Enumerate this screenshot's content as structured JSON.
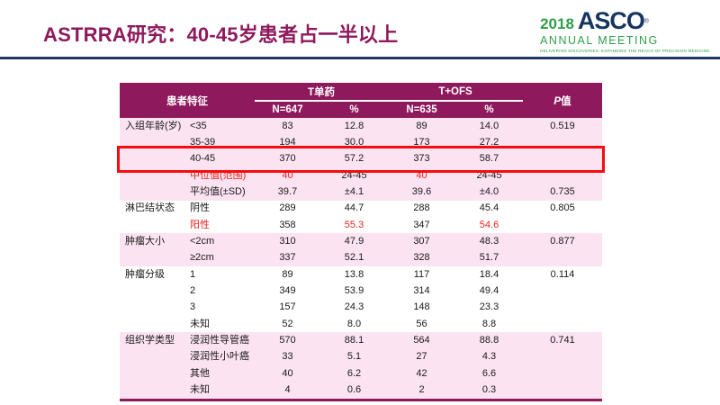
{
  "slide_title": "ASTRRA研究：40-45岁患者占一半以上",
  "logo": {
    "year": "2018",
    "org": "ASCO",
    "reg": "®",
    "meeting": "ANNUAL MEETING",
    "tagline": "DELIVERING DISCOVERIES: EXPANDING THE REACH OF PRECISION MEDICINE."
  },
  "table": {
    "feature_header": "患者特征",
    "group_headers": [
      "T单药",
      "T+OFS"
    ],
    "sub_headers": [
      "N=647",
      "%",
      "N=635",
      "%"
    ],
    "p_header_italic": "P",
    "p_header_rest": "值",
    "rows": [
      {
        "group": "入组年龄(岁)",
        "label": "<35",
        "values": [
          "83",
          "12.8",
          "89",
          "14.0"
        ],
        "p": "0.519",
        "band": "pink"
      },
      {
        "group": "",
        "label": "35-39",
        "values": [
          "194",
          "30.0",
          "173",
          "27.2"
        ],
        "p": "",
        "band": "pink"
      },
      {
        "group": "",
        "label": "40-45",
        "values": [
          "370",
          "57.2",
          "373",
          "58.7"
        ],
        "p": "",
        "band": "pink",
        "highlight": true
      },
      {
        "group": "",
        "label": "中位值(范围)",
        "values": [
          "40",
          "24-45",
          "40",
          "24-45"
        ],
        "p": "",
        "band": "pink",
        "red_label": true,
        "red_cols": [
          0,
          2
        ]
      },
      {
        "group": "",
        "label": "平均值(±SD)",
        "values": [
          "39.7",
          "±4.1",
          "39.6",
          "±4.0"
        ],
        "p": "0.735",
        "band": "pink"
      },
      {
        "group": "淋巴结状态",
        "label": "阴性",
        "values": [
          "289",
          "44.7",
          "288",
          "45.4"
        ],
        "p": "0.805",
        "band": "white"
      },
      {
        "group": "",
        "label": "阳性",
        "values": [
          "358",
          "55.3",
          "347",
          "54.6"
        ],
        "p": "",
        "band": "white",
        "red_label": true,
        "red_cols": [
          1,
          3
        ]
      },
      {
        "group": "肿瘤大小",
        "label": "<2cm",
        "values": [
          "310",
          "47.9",
          "307",
          "48.3"
        ],
        "p": "0.877",
        "band": "pink"
      },
      {
        "group": "",
        "label": "≥2cm",
        "values": [
          "337",
          "52.1",
          "328",
          "51.7"
        ],
        "p": "",
        "band": "pink"
      },
      {
        "group": "肿瘤分级",
        "label": "1",
        "values": [
          "89",
          "13.8",
          "117",
          "18.4"
        ],
        "p": "0.114",
        "band": "white"
      },
      {
        "group": "",
        "label": "2",
        "values": [
          "349",
          "53.9",
          "314",
          "49.4"
        ],
        "p": "",
        "band": "white"
      },
      {
        "group": "",
        "label": "3",
        "values": [
          "157",
          "24.3",
          "148",
          "23.3"
        ],
        "p": "",
        "band": "white"
      },
      {
        "group": "",
        "label": "未知",
        "values": [
          "52",
          "8.0",
          "56",
          "8.8"
        ],
        "p": "",
        "band": "white"
      },
      {
        "group": "组织学类型",
        "label": "浸润性导管癌",
        "values": [
          "570",
          "88.1",
          "564",
          "88.8"
        ],
        "p": "0.741",
        "band": "pink"
      },
      {
        "group": "",
        "label": "浸润性小叶癌",
        "values": [
          "33",
          "5.1",
          "27",
          "4.3"
        ],
        "p": "",
        "band": "pink"
      },
      {
        "group": "",
        "label": "其他",
        "values": [
          "40",
          "6.2",
          "42",
          "6.6"
        ],
        "p": "",
        "band": "pink"
      },
      {
        "group": "",
        "label": "未知",
        "values": [
          "4",
          "0.6",
          "2",
          "0.3"
        ],
        "p": "",
        "band": "pink"
      }
    ]
  },
  "colors": {
    "title_magenta": "#8E195C",
    "table_header_bg": "#8E195C",
    "pink_row_bg": "#FBE3F1",
    "red_accent_text": "#E8251F",
    "highlight_box_red": "#F50D0D",
    "divider_navy": "#1F3864",
    "logo_green": "#2F9E49",
    "logo_blue": "#16355F"
  }
}
